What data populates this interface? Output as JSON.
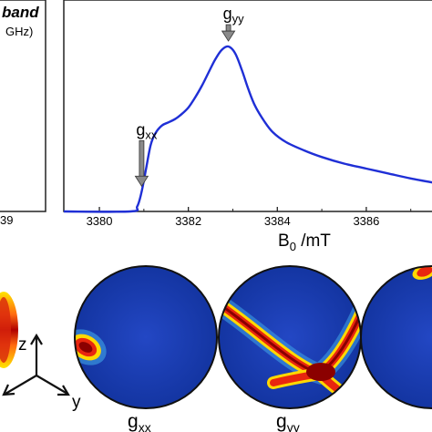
{
  "left_panel": {
    "title_fragment": "band",
    "freq_fragment": "GHz)",
    "tick_fragment": "39"
  },
  "chart_data": {
    "type": "line",
    "xlabel": "B",
    "xlabel_sub": "0",
    "xlabel_unit": " /mT",
    "xlim": [
      3379.2,
      3387.6
    ],
    "ylim": [
      0,
      1.05
    ],
    "xticks": [
      3380,
      3382,
      3384,
      3386
    ],
    "tick_labels": [
      "3380",
      "3382",
      "3384",
      "3386"
    ],
    "series": [
      {
        "color": "#1f2fd6",
        "x": [
          3380.7,
          3380.85,
          3380.95,
          3381.05,
          3381.15,
          3381.25,
          3381.4,
          3381.55,
          3381.7,
          3381.85,
          3382.0,
          3382.15,
          3382.3,
          3382.45,
          3382.6,
          3382.75,
          3382.9,
          3383.05,
          3383.2,
          3383.35,
          3383.5,
          3383.7,
          3383.9,
          3384.2,
          3384.6,
          3385.0,
          3385.5,
          3386.0,
          3386.5,
          3387.0,
          3387.6
        ],
        "y": [
          0.0,
          0.03,
          0.12,
          0.26,
          0.4,
          0.47,
          0.52,
          0.54,
          0.56,
          0.59,
          0.63,
          0.69,
          0.76,
          0.84,
          0.92,
          0.98,
          1.0,
          0.96,
          0.86,
          0.74,
          0.64,
          0.55,
          0.48,
          0.42,
          0.37,
          0.33,
          0.29,
          0.26,
          0.23,
          0.2,
          0.17
        ]
      }
    ],
    "annotations": [
      {
        "base": "g",
        "sub": "xx",
        "x": 3380.95
      },
      {
        "base": "g",
        "sub": "yy",
        "x": 3382.9
      }
    ]
  },
  "spheres": [
    {
      "base": "g",
      "sub": "xx"
    },
    {
      "base": "g",
      "sub": "yy"
    }
  ],
  "axes_labels": {
    "z": "z",
    "y": "y"
  },
  "colors": {
    "sphere_bg": "#1a3fb8",
    "hot_core": "#8b0000",
    "hot_mid": "#e8260f",
    "hot_edge": "#ffd800",
    "arrow_fill": "#8a8a8a"
  }
}
